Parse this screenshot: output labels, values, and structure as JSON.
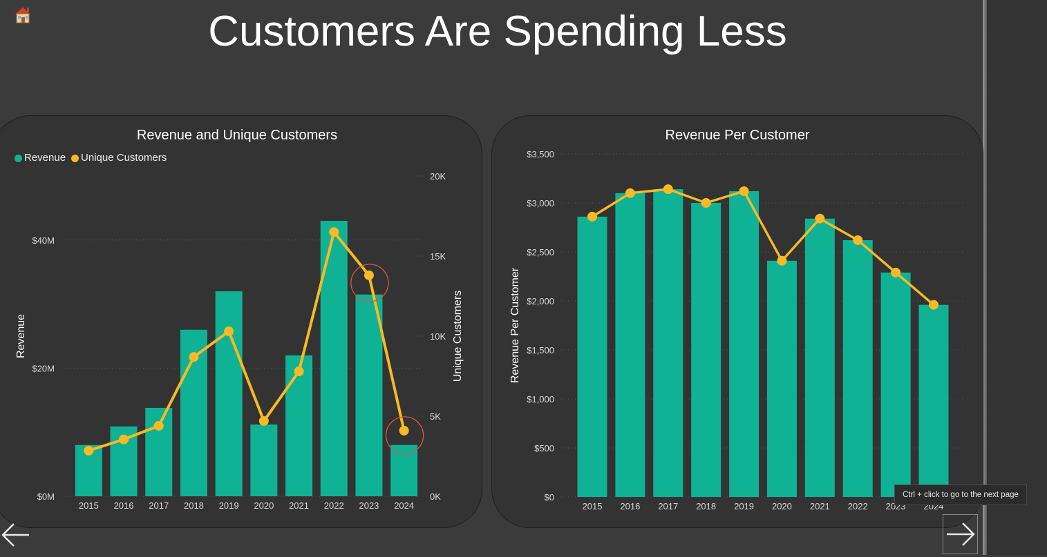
{
  "page": {
    "title": "Customers Are Spending Less"
  },
  "tooltip": {
    "text": "Ctrl + click to go to the next page"
  },
  "colors": {
    "bar": "#0fb294",
    "line": "#f7b924",
    "highlight": "#e0553a",
    "background": "#3b3b3b",
    "card": "#333333"
  },
  "icons": {
    "home": "home-icon",
    "back": "arrow-left-icon",
    "next": "arrow-right-icon"
  },
  "chart_data": [
    {
      "type": "bar",
      "title": "Revenue and Unique Customers",
      "legend": [
        "Revenue",
        "Unique Customers"
      ],
      "legend_position": "top-left",
      "categories": [
        "2015",
        "2016",
        "2017",
        "2018",
        "2019",
        "2020",
        "2021",
        "2022",
        "2023",
        "2024"
      ],
      "ylabel": "Revenue",
      "y2label": "Unique Customers",
      "ylim": [
        0,
        50000000
      ],
      "y2lim": [
        0,
        20000
      ],
      "y_ticks": [
        {
          "value": 0,
          "label": "$0M"
        },
        {
          "value": 20000000,
          "label": "$20M"
        },
        {
          "value": 40000000,
          "label": "$40M"
        }
      ],
      "y2_ticks": [
        {
          "value": 0,
          "label": "0K"
        },
        {
          "value": 5000,
          "label": "5K"
        },
        {
          "value": 10000,
          "label": "10K"
        },
        {
          "value": 15000,
          "label": "15K"
        },
        {
          "value": 20000,
          "label": "20K"
        }
      ],
      "grid": true,
      "series": [
        {
          "name": "Revenue",
          "type": "bar",
          "axis": "left",
          "values": [
            8000000,
            10900000,
            13800000,
            26000000,
            32000000,
            11200000,
            22000000,
            43000000,
            31500000,
            8000000
          ]
        },
        {
          "name": "Unique Customers",
          "type": "line",
          "axis": "right",
          "values": [
            2850,
            3550,
            4400,
            8700,
            10300,
            4700,
            7800,
            16500,
            13800,
            4100
          ]
        }
      ],
      "highlighted_points": [
        "2023",
        "2024"
      ]
    },
    {
      "type": "bar",
      "title": "Revenue Per Customer",
      "categories": [
        "2015",
        "2016",
        "2017",
        "2018",
        "2019",
        "2020",
        "2021",
        "2022",
        "2023",
        "2024"
      ],
      "ylabel": "Revenue Per Customer",
      "ylim": [
        0,
        3500
      ],
      "y_ticks": [
        {
          "value": 0,
          "label": "$0"
        },
        {
          "value": 500,
          "label": "$500"
        },
        {
          "value": 1000,
          "label": "$1,000"
        },
        {
          "value": 1500,
          "label": "$1,500"
        },
        {
          "value": 2000,
          "label": "$2,000"
        },
        {
          "value": 2500,
          "label": "$2,500"
        },
        {
          "value": 3000,
          "label": "$3,000"
        },
        {
          "value": 3500,
          "label": "$3,500"
        }
      ],
      "grid": true,
      "series": [
        {
          "type": "bar",
          "values": [
            2860,
            3100,
            3140,
            3000,
            3120,
            2410,
            2840,
            2620,
            2290,
            1960
          ]
        },
        {
          "type": "line",
          "values": [
            2860,
            3100,
            3140,
            3000,
            3120,
            2410,
            2840,
            2620,
            2290,
            1960
          ]
        }
      ]
    }
  ]
}
